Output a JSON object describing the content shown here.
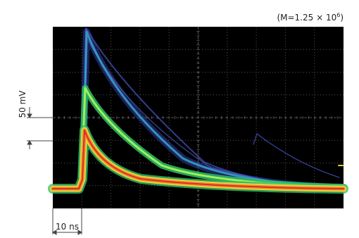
{
  "annotation": {
    "base": "(M=1.25 × 10",
    "exponent": "6",
    "close": ")"
  },
  "vertical_scale": "50 mV",
  "time_scale": "10 ns"
}
